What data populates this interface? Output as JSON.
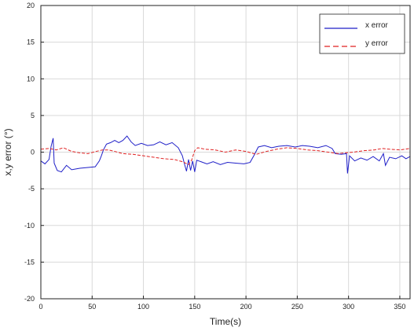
{
  "chart_data": {
    "type": "line",
    "title": "",
    "xlabel": "Time(s)",
    "ylabel": "x,y error (°)",
    "xlim": [
      0,
      360
    ],
    "ylim": [
      -20,
      20
    ],
    "xticks": [
      "0",
      "50",
      "100",
      "150",
      "200",
      "250",
      "300",
      "350"
    ],
    "yticks": [
      "-20",
      "-15",
      "-10",
      "-5",
      "0",
      "5",
      "10",
      "15",
      "20"
    ],
    "grid": true,
    "legend_position": "top-right",
    "series": [
      {
        "name": "x error",
        "color": "#1f1fc8",
        "style": "solid",
        "points": [
          [
            0,
            -1.2
          ],
          [
            4,
            -1.6
          ],
          [
            8,
            -1.0
          ],
          [
            10,
            0.8
          ],
          [
            12,
            1.9
          ],
          [
            13,
            -1.5
          ],
          [
            16,
            -2.5
          ],
          [
            20,
            -2.7
          ],
          [
            25,
            -1.8
          ],
          [
            30,
            -2.4
          ],
          [
            38,
            -2.2
          ],
          [
            45,
            -2.1
          ],
          [
            53,
            -2.0
          ],
          [
            57,
            -1.2
          ],
          [
            59,
            -0.5
          ],
          [
            61,
            0.3
          ],
          [
            64,
            1.1
          ],
          [
            68,
            1.3
          ],
          [
            72,
            1.6
          ],
          [
            76,
            1.3
          ],
          [
            80,
            1.6
          ],
          [
            84,
            2.2
          ],
          [
            88,
            1.4
          ],
          [
            92,
            0.9
          ],
          [
            98,
            1.2
          ],
          [
            104,
            0.9
          ],
          [
            110,
            1.0
          ],
          [
            116,
            1.4
          ],
          [
            122,
            1.0
          ],
          [
            128,
            1.3
          ],
          [
            134,
            0.6
          ],
          [
            138,
            -0.5
          ],
          [
            140,
            -1.6
          ],
          [
            142,
            -2.6
          ],
          [
            144,
            -1.0
          ],
          [
            146,
            -2.5
          ],
          [
            148,
            -1.2
          ],
          [
            150,
            -2.7
          ],
          [
            152,
            -1.1
          ],
          [
            156,
            -1.3
          ],
          [
            162,
            -1.6
          ],
          [
            168,
            -1.3
          ],
          [
            175,
            -1.7
          ],
          [
            182,
            -1.4
          ],
          [
            190,
            -1.5
          ],
          [
            198,
            -1.6
          ],
          [
            204,
            -1.4
          ],
          [
            208,
            -0.4
          ],
          [
            212,
            0.7
          ],
          [
            218,
            0.9
          ],
          [
            225,
            0.6
          ],
          [
            232,
            0.8
          ],
          [
            240,
            0.9
          ],
          [
            248,
            0.7
          ],
          [
            255,
            0.9
          ],
          [
            262,
            0.8
          ],
          [
            270,
            0.6
          ],
          [
            278,
            0.9
          ],
          [
            284,
            0.5
          ],
          [
            287,
            -0.2
          ],
          [
            293,
            -0.3
          ],
          [
            298,
            -0.2
          ],
          [
            299,
            -2.9
          ],
          [
            301,
            -0.5
          ],
          [
            306,
            -1.2
          ],
          [
            312,
            -0.8
          ],
          [
            318,
            -1.1
          ],
          [
            324,
            -0.6
          ],
          [
            330,
            -1.2
          ],
          [
            334,
            -0.2
          ],
          [
            336,
            -1.8
          ],
          [
            340,
            -0.7
          ],
          [
            346,
            -0.9
          ],
          [
            352,
            -0.5
          ],
          [
            356,
            -0.9
          ],
          [
            360,
            -0.6
          ]
        ]
      },
      {
        "name": "y error",
        "color": "#e02020",
        "style": "dashed",
        "points": [
          [
            0,
            0.4
          ],
          [
            8,
            0.5
          ],
          [
            15,
            0.3
          ],
          [
            22,
            0.6
          ],
          [
            30,
            0.1
          ],
          [
            38,
            -0.1
          ],
          [
            46,
            -0.2
          ],
          [
            54,
            0.1
          ],
          [
            60,
            0.3
          ],
          [
            66,
            0.3
          ],
          [
            72,
            0.1
          ],
          [
            80,
            -0.2
          ],
          [
            90,
            -0.3
          ],
          [
            100,
            -0.5
          ],
          [
            110,
            -0.7
          ],
          [
            120,
            -0.9
          ],
          [
            130,
            -1.0
          ],
          [
            138,
            -1.3
          ],
          [
            144,
            -1.7
          ],
          [
            147,
            -1.1
          ],
          [
            150,
            0.2
          ],
          [
            153,
            0.6
          ],
          [
            160,
            0.4
          ],
          [
            170,
            0.3
          ],
          [
            180,
            0.0
          ],
          [
            190,
            0.3
          ],
          [
            200,
            0.1
          ],
          [
            210,
            -0.3
          ],
          [
            220,
            0.1
          ],
          [
            230,
            0.4
          ],
          [
            240,
            0.6
          ],
          [
            250,
            0.5
          ],
          [
            260,
            0.3
          ],
          [
            270,
            0.2
          ],
          [
            280,
            0.0
          ],
          [
            290,
            -0.2
          ],
          [
            296,
            -0.1
          ],
          [
            305,
            0.0
          ],
          [
            315,
            0.2
          ],
          [
            325,
            0.3
          ],
          [
            333,
            0.5
          ],
          [
            340,
            0.4
          ],
          [
            350,
            0.3
          ],
          [
            360,
            0.5
          ]
        ]
      }
    ]
  }
}
